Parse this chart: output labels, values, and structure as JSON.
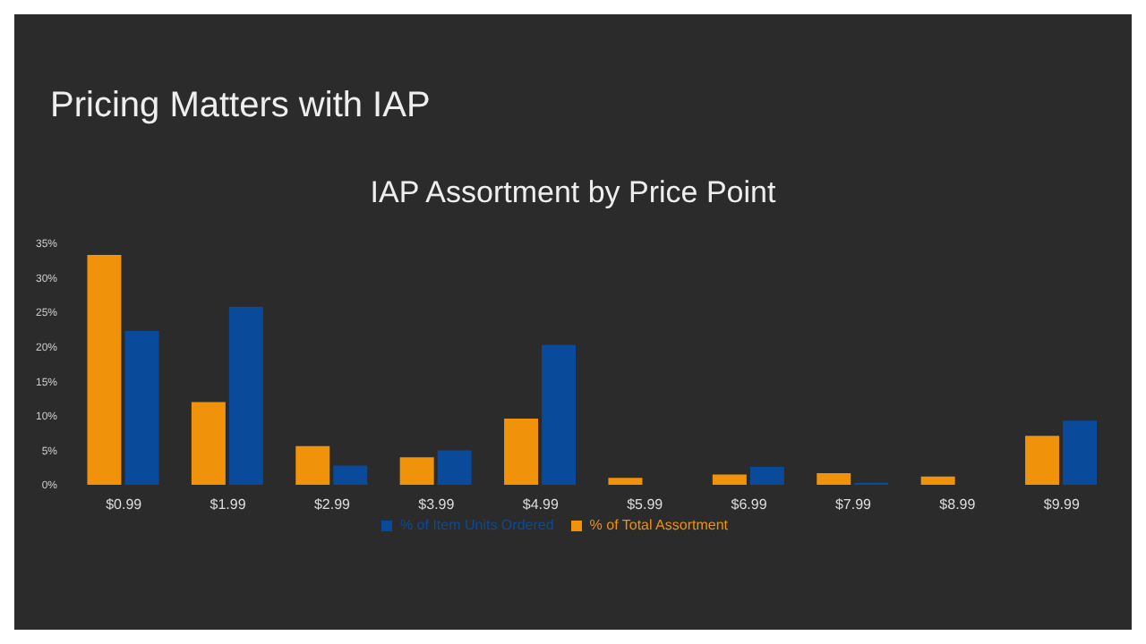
{
  "chart_data": {
    "type": "bar",
    "title": "Pricing Matters with IAP",
    "subtitle": "IAP Assortment by Price Point",
    "categories": [
      "$0.99",
      "$1.99",
      "$2.99",
      "$3.99",
      "$4.99",
      "$5.99",
      "$6.99",
      "$7.99",
      "$8.99",
      "$9.99"
    ],
    "series": [
      {
        "name": "% of Total Assortment",
        "color": "#f0920a",
        "values": [
          33.3,
          12,
          5.6,
          4,
          9.6,
          1,
          1.5,
          1.7,
          1.2,
          7.1
        ]
      },
      {
        "name": "% of Item Units Ordered",
        "color": "#0a4a9a",
        "values": [
          22.3,
          25.8,
          2.8,
          5,
          20.3,
          0,
          2.6,
          0.3,
          0,
          9.3
        ]
      }
    ],
    "ylim": [
      0,
      35
    ],
    "yticks": [
      {
        "value": 0,
        "label": "0%"
      },
      {
        "value": 5,
        "label": "5%"
      },
      {
        "value": 10,
        "label": "10%"
      },
      {
        "value": 15,
        "label": "15%"
      },
      {
        "value": 20,
        "label": "20%"
      },
      {
        "value": 25,
        "label": "25%"
      },
      {
        "value": 30,
        "label": "30%"
      },
      {
        "value": 35,
        "label": "35%"
      }
    ],
    "grid": false,
    "legend": "bottom"
  }
}
